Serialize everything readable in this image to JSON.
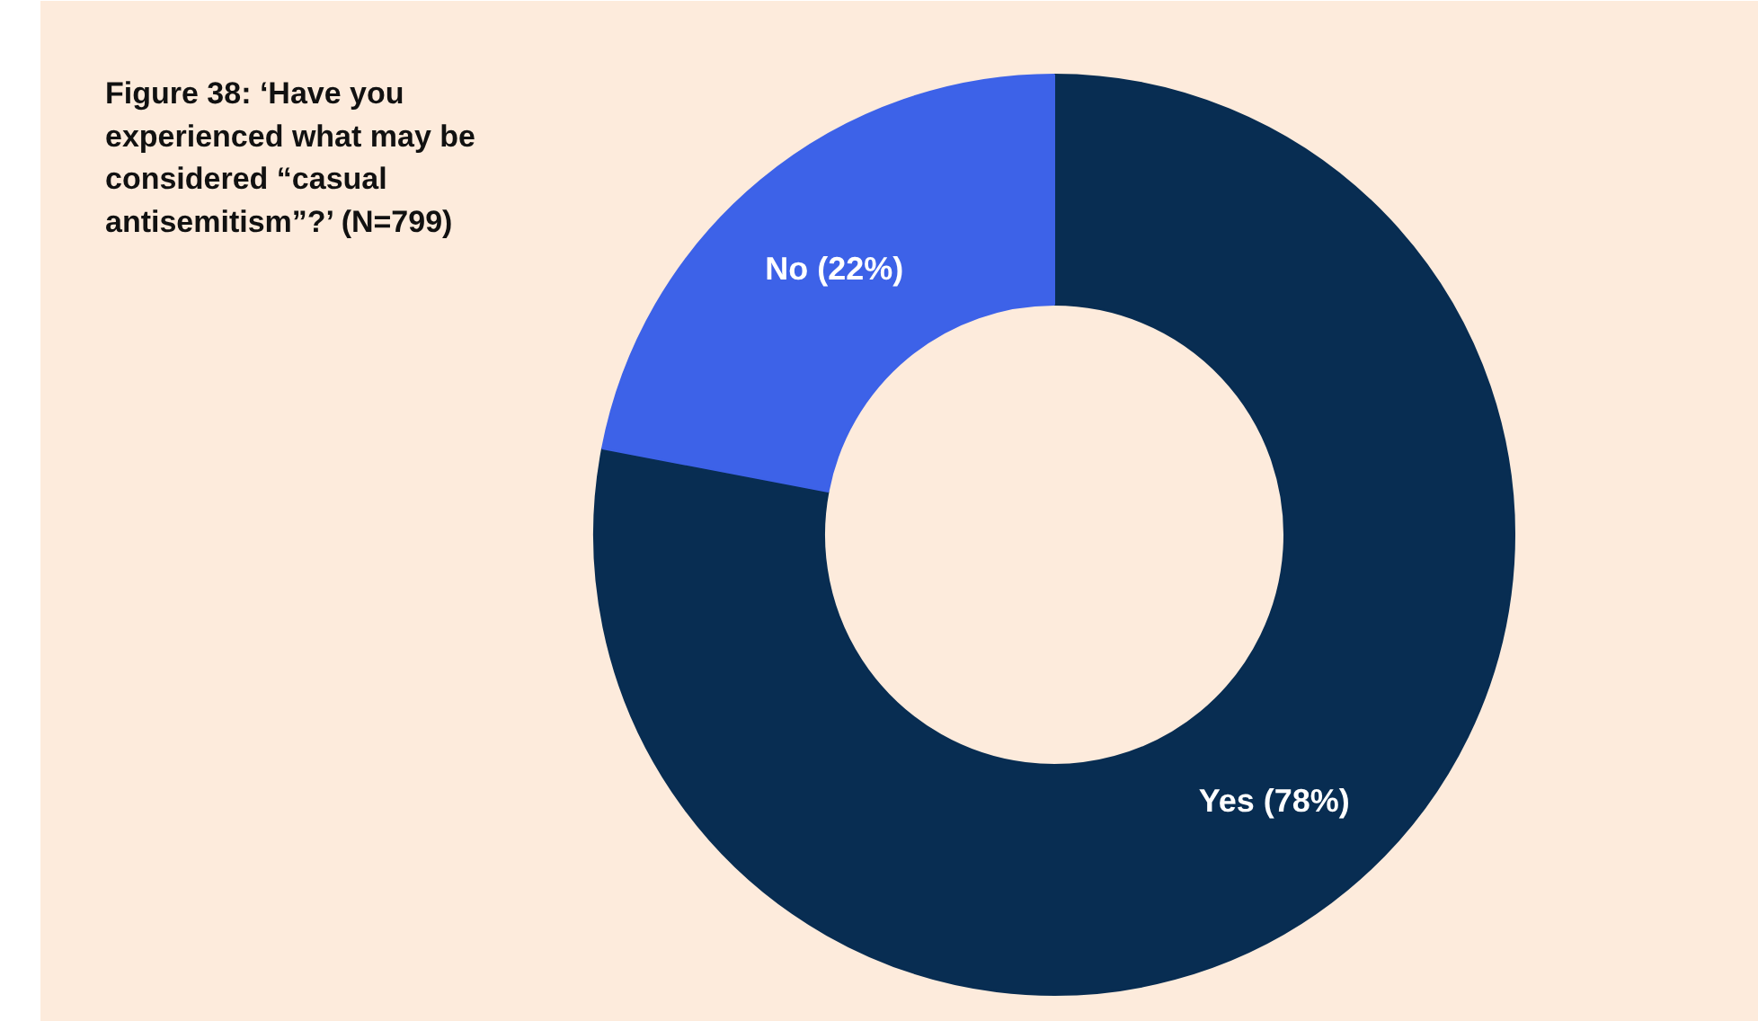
{
  "chart_data": {
    "type": "donut",
    "title": "Figure 38: ‘Have you experienced what may be considered “casual antisemitism”?’ (N=799)",
    "categories": [
      "Yes",
      "No"
    ],
    "values": [
      78,
      22
    ],
    "colors": [
      "#082d52",
      "#3d62e8"
    ],
    "value_labels": [
      "(78%)",
      "(22%)"
    ],
    "legend": false
  }
}
